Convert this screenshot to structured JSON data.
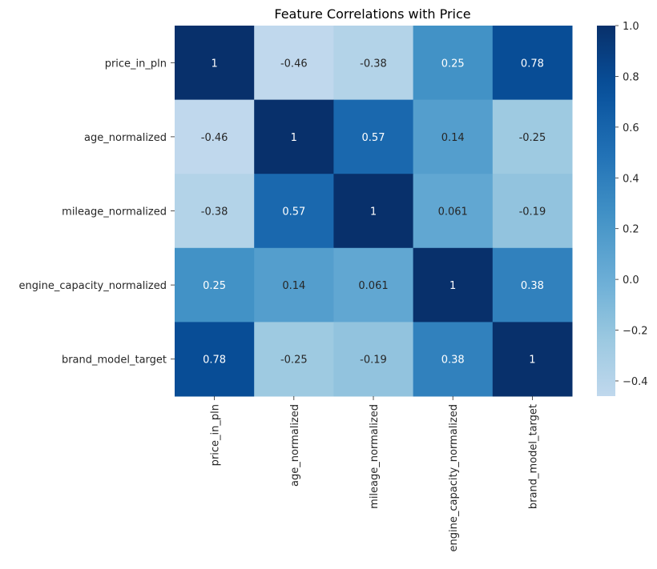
{
  "chart_data": {
    "type": "heatmap",
    "title": "Feature Correlations with Price",
    "row_labels": [
      "price_in_pln",
      "age_normalized",
      "mileage_normalized",
      "engine_capacity_normalized",
      "brand_model_target"
    ],
    "col_labels": [
      "price_in_pln",
      "age_normalized",
      "mileage_normalized",
      "engine_capacity_normalized",
      "brand_model_target"
    ],
    "values": [
      [
        1,
        -0.46,
        -0.38,
        0.25,
        0.78
      ],
      [
        -0.46,
        1,
        0.57,
        0.14,
        -0.25
      ],
      [
        -0.38,
        0.57,
        1,
        0.061,
        -0.19
      ],
      [
        0.25,
        0.14,
        0.061,
        1,
        0.38
      ],
      [
        0.78,
        -0.25,
        -0.19,
        0.38,
        1
      ]
    ],
    "annotations": [
      [
        "1",
        "-0.46",
        "-0.38",
        "0.25",
        "0.78"
      ],
      [
        "-0.46",
        "1",
        "0.57",
        "0.14",
        "-0.25"
      ],
      [
        "-0.38",
        "0.57",
        "1",
        "0.061",
        "-0.19"
      ],
      [
        "0.25",
        "0.14",
        "0.061",
        "1",
        "0.38"
      ],
      [
        "0.78",
        "-0.25",
        "-0.19",
        "0.38",
        "1"
      ]
    ],
    "colormap": "Blues",
    "colorbar": {
      "range": [
        -0.46,
        1
      ],
      "ticks": [
        -0.4,
        -0.2,
        0.0,
        0.2,
        0.4,
        0.6,
        0.8,
        1.0
      ],
      "tick_labels": [
        "−0.4",
        "−0.2",
        "0.0",
        "0.2",
        "0.4",
        "0.6",
        "0.8",
        "1.0"
      ]
    },
    "grid": false
  }
}
